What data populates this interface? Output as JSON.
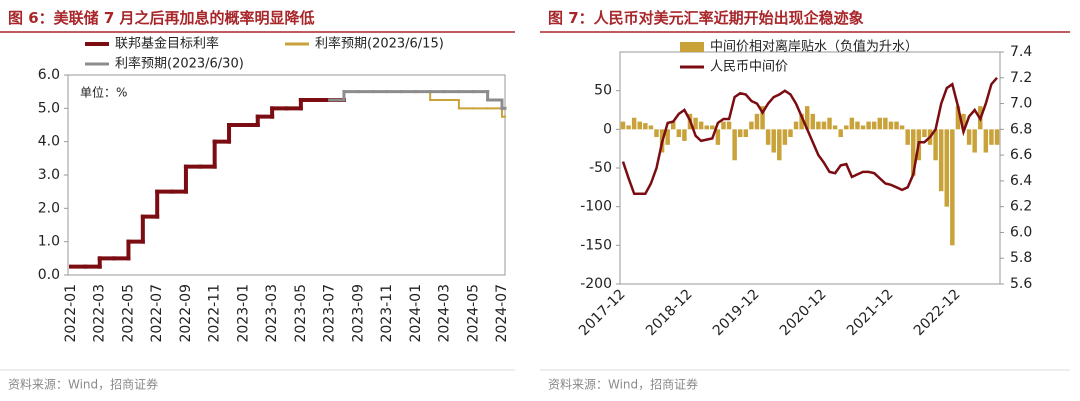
{
  "chart_data": [
    {
      "type": "line",
      "step": true,
      "title": "图 6：美联储 7 月之后再加息的概率明显降低",
      "annotation": "单位：%",
      "note": "资料来源：Wind，招商证券",
      "categories": [
        "2022-01",
        null,
        "2022-03",
        null,
        "2022-05",
        null,
        "2022-07",
        null,
        "2022-09",
        null,
        "2022-11",
        null,
        "2023-01",
        null,
        "2023-03",
        null,
        "2023-05",
        null,
        "2023-07",
        null,
        "2023-09",
        null,
        "2023-11",
        null,
        "2024-01",
        null,
        "2024-03",
        null,
        "2024-05",
        null,
        "2024-07"
      ],
      "ylim": [
        0,
        6
      ],
      "yticks": [
        {
          "value": 0,
          "label": "0.0"
        },
        {
          "value": 1,
          "label": "1.0"
        },
        {
          "value": 2,
          "label": "2.0"
        },
        {
          "value": 3,
          "label": "3.0"
        },
        {
          "value": 4,
          "label": "4.0"
        },
        {
          "value": 5,
          "label": "5.0"
        },
        {
          "value": 6,
          "label": "6.0"
        }
      ],
      "series": [
        {
          "name": "联邦基金目标利率",
          "color": "#7b0c12",
          "values": [
            0.25,
            0.25,
            0.5,
            0.5,
            1.0,
            1.75,
            2.5,
            2.5,
            3.25,
            3.25,
            4.0,
            4.5,
            4.5,
            4.75,
            5.0,
            5.0,
            5.25,
            5.25,
            5.25,
            null,
            null,
            null,
            null,
            null,
            null,
            null,
            null,
            null,
            null,
            null,
            null
          ]
        },
        {
          "name": "利率预期(2023/6/15)",
          "color": "#c9a23a",
          "values": [
            null,
            null,
            null,
            null,
            null,
            null,
            null,
            null,
            null,
            null,
            null,
            null,
            null,
            null,
            null,
            null,
            null,
            null,
            null,
            5.5,
            5.5,
            5.5,
            5.5,
            5.5,
            5.5,
            5.25,
            5.25,
            5.0,
            5.0,
            5.0,
            4.75
          ]
        },
        {
          "name": "利率预期(2023/6/30)",
          "color": "#8c8c8c",
          "values": [
            null,
            null,
            null,
            null,
            null,
            null,
            null,
            null,
            null,
            null,
            null,
            null,
            null,
            null,
            null,
            null,
            null,
            null,
            5.25,
            5.5,
            5.5,
            5.5,
            5.5,
            5.5,
            5.5,
            5.5,
            5.5,
            5.5,
            5.5,
            5.25,
            5.0
          ]
        }
      ]
    },
    {
      "type": "combo",
      "title": "图 7：人民币对美元汇率近期开始出现企稳迹象",
      "note": "资料来源：Wind，招商证券",
      "categories": [
        "2017-12",
        null,
        null,
        null,
        null,
        null,
        null,
        null,
        null,
        null,
        null,
        null,
        "2018-12",
        null,
        null,
        null,
        null,
        null,
        null,
        null,
        null,
        null,
        null,
        null,
        "2019-12",
        null,
        null,
        null,
        null,
        null,
        null,
        null,
        null,
        null,
        null,
        null,
        "2020-12",
        null,
        null,
        null,
        null,
        null,
        null,
        null,
        null,
        null,
        null,
        null,
        "2021-12",
        null,
        null,
        null,
        null,
        null,
        null,
        null,
        null,
        null,
        null,
        null,
        "2022-12",
        null,
        null,
        null,
        null,
        null,
        null,
        null
      ],
      "ylim": [
        -200,
        100
      ],
      "yticks": [
        -200,
        -150,
        -100,
        -50,
        0,
        50
      ],
      "y2lim": [
        5.6,
        7.4
      ],
      "y2ticks": [
        5.6,
        5.8,
        {
          "value": 6,
          "label": "6.0"
        },
        6.2,
        6.4,
        6.6,
        6.8,
        {
          "value": 7,
          "label": "7.0"
        },
        7.2,
        7.4
      ],
      "series": [
        {
          "name": "中间价相对离岸贴水（负值为升水）",
          "type": "bar",
          "color": "#c9a23a",
          "values": [
            10,
            5,
            15,
            10,
            8,
            5,
            -10,
            -30,
            -20,
            10,
            -10,
            -15,
            20,
            15,
            10,
            5,
            5,
            -20,
            10,
            10,
            -40,
            -10,
            -10,
            10,
            20,
            30,
            -20,
            -30,
            -40,
            -20,
            -10,
            10,
            20,
            30,
            20,
            10,
            10,
            15,
            5,
            -10,
            5,
            15,
            10,
            5,
            10,
            10,
            15,
            15,
            10,
            10,
            5,
            -20,
            -60,
            -40,
            -10,
            -20,
            -40,
            -80,
            -100,
            -150,
            30,
            20,
            -20,
            -30,
            30,
            -30,
            -20,
            -20
          ]
        },
        {
          "name": "人民币中间价",
          "type": "line",
          "axis": "y2",
          "color": "#7b0c12",
          "values": [
            6.55,
            6.42,
            6.3,
            6.3,
            6.3,
            6.38,
            6.5,
            6.7,
            6.85,
            6.86,
            6.92,
            6.95,
            6.87,
            6.75,
            6.71,
            6.72,
            6.73,
            6.85,
            6.88,
            6.88,
            7.05,
            7.08,
            7.07,
            7.02,
            7.0,
            6.93,
            7.0,
            7.05,
            7.07,
            7.1,
            7.07,
            7.0,
            6.9,
            6.8,
            6.7,
            6.6,
            6.54,
            6.47,
            6.46,
            6.52,
            6.53,
            6.43,
            6.45,
            6.47,
            6.47,
            6.46,
            6.42,
            6.38,
            6.37,
            6.35,
            6.33,
            6.35,
            6.45,
            6.7,
            6.7,
            6.74,
            6.8,
            7.0,
            7.12,
            7.15,
            6.98,
            6.78,
            6.9,
            6.95,
            6.88,
            7.0,
            7.15,
            7.2
          ]
        }
      ]
    }
  ]
}
